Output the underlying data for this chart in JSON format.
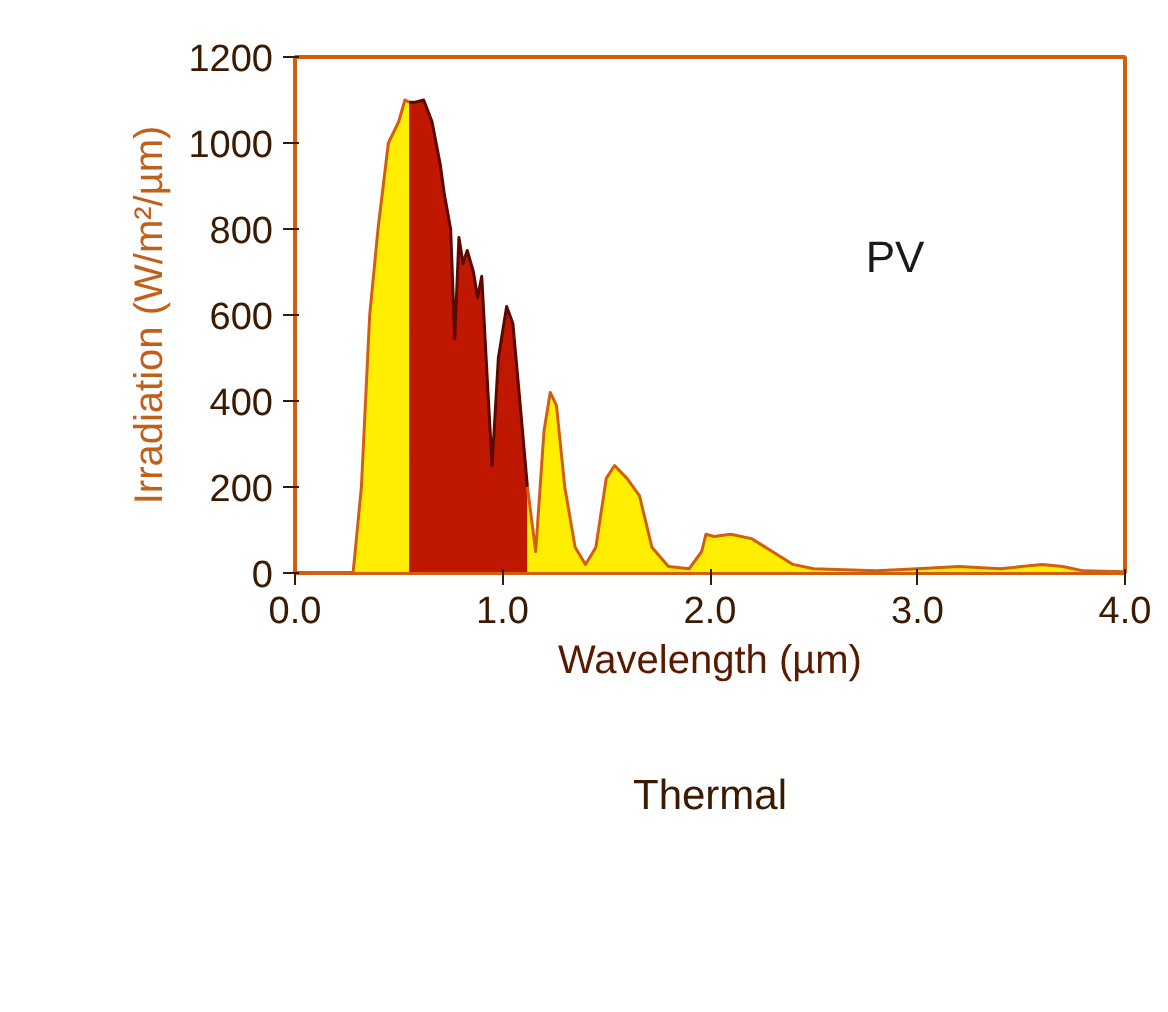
{
  "chart_data": {
    "type": "area",
    "xlabel": "Wavelength (µm)",
    "ylabel": "Irradiation (W/m²/µm)",
    "xlim": [
      0,
      4
    ],
    "xticks": [
      {
        "value": 0,
        "label": "0.0"
      },
      {
        "value": 1,
        "label": "1.0"
      },
      {
        "value": 2,
        "label": "2.0"
      },
      {
        "value": 3,
        "label": "3.0"
      },
      {
        "value": 4,
        "label": "4.0"
      }
    ],
    "ylim": [
      0,
      1200
    ],
    "yticks": [
      0,
      200,
      400,
      600,
      800,
      1000,
      1200
    ],
    "grid": false,
    "annotations": [
      "PV",
      "Thermal"
    ],
    "series": [
      {
        "color": "#ffee00",
        "x": [
          0.28,
          0.32,
          0.36,
          0.4,
          0.45,
          0.5,
          0.53,
          0.55
        ],
        "values": [
          0,
          200,
          600,
          800,
          1000,
          1050,
          1100,
          1095
        ]
      },
      {
        "color": "#c01800",
        "x": [
          0.55,
          0.58,
          0.62,
          0.66,
          0.7,
          0.72,
          0.75,
          0.77,
          0.79,
          0.81,
          0.83,
          0.86,
          0.88,
          0.9,
          0.93,
          0.95,
          0.98,
          1.02,
          1.05,
          1.08,
          1.12
        ],
        "values": [
          1095,
          1095,
          1100,
          1050,
          950,
          880,
          800,
          545,
          780,
          720,
          750,
          700,
          640,
          690,
          420,
          250,
          500,
          620,
          580,
          420,
          200
        ]
      },
      {
        "color": "#ffee00",
        "x": [
          1.12,
          1.16,
          1.2,
          1.23,
          1.26,
          1.3,
          1.35,
          1.4,
          1.45,
          1.5,
          1.54,
          1.6,
          1.66,
          1.72,
          1.8,
          1.9,
          1.96,
          1.98,
          2.02,
          2.1,
          2.2,
          2.3,
          2.4,
          2.5,
          2.8,
          3.0,
          3.2,
          3.4,
          3.6,
          3.7,
          3.8,
          4.0
        ],
        "values": [
          200,
          50,
          330,
          420,
          390,
          200,
          60,
          20,
          60,
          220,
          250,
          220,
          180,
          60,
          15,
          10,
          50,
          90,
          85,
          90,
          80,
          50,
          20,
          10,
          5,
          10,
          15,
          10,
          20,
          15,
          5,
          3
        ]
      }
    ]
  }
}
